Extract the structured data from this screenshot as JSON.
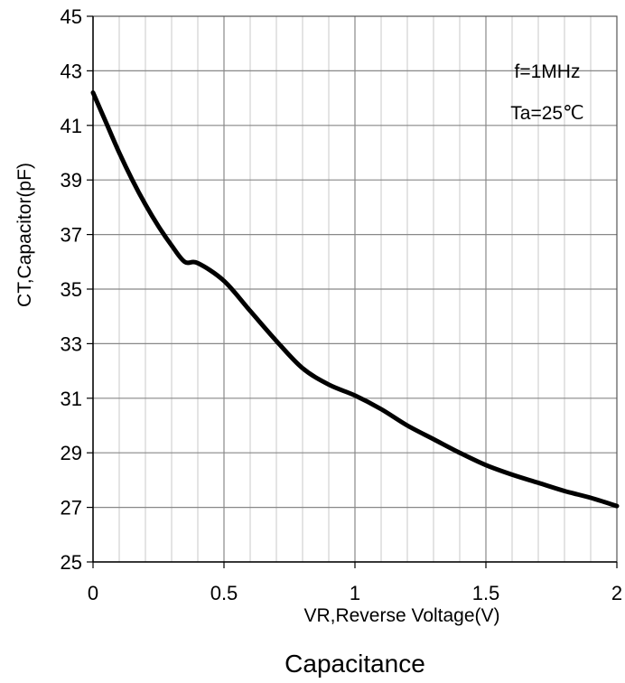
{
  "chart_data": {
    "type": "line",
    "title": "",
    "xlabel": "VR,Reverse Voltage(V)",
    "ylabel": "CT,Capacitor(pF)",
    "caption": "Capacitance",
    "xlim": [
      0,
      2
    ],
    "ylim": [
      25,
      45
    ],
    "x_ticks": [
      "0",
      "0.5",
      "1",
      "1.5",
      "2"
    ],
    "y_ticks": [
      "25",
      "27",
      "29",
      "31",
      "33",
      "35",
      "37",
      "39",
      "41",
      "43",
      "45"
    ],
    "x_minor_step": 0.1,
    "y_minor_step": 2,
    "grid": true,
    "annotations": [
      "f=1MHz",
      "Ta=25℃"
    ],
    "series": [
      {
        "x": [
          0,
          0.05,
          0.1,
          0.15,
          0.2,
          0.25,
          0.3,
          0.35,
          0.4,
          0.5,
          0.6,
          0.7,
          0.8,
          0.9,
          1.0,
          1.1,
          1.2,
          1.3,
          1.4,
          1.5,
          1.6,
          1.7,
          1.8,
          1.9,
          2.0
        ],
        "y": [
          42.2,
          41.1,
          40.0,
          39.0,
          38.1,
          37.3,
          36.6,
          36.0,
          35.95,
          35.3,
          34.2,
          33.1,
          32.1,
          31.5,
          31.1,
          30.6,
          30.0,
          29.5,
          29.0,
          28.55,
          28.2,
          27.9,
          27.6,
          27.35,
          27.05
        ],
        "color": "#000000"
      }
    ]
  }
}
